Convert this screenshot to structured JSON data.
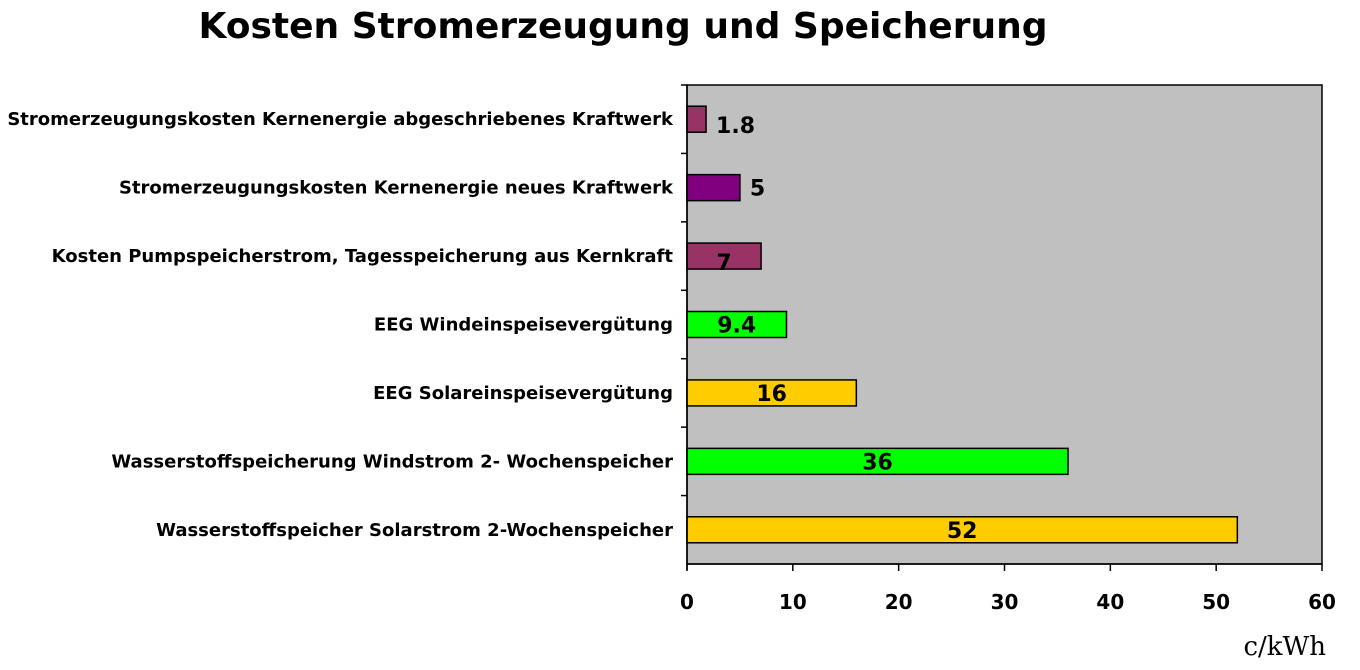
{
  "chart_data": {
    "type": "bar",
    "orientation": "horizontal",
    "title": "Kosten Stromerzeugung und Speicherung",
    "xlabel": "",
    "ylabel": "",
    "unit_label": "c/kWh",
    "xlim": [
      0,
      60
    ],
    "x_ticks": [
      0,
      10,
      20,
      30,
      40,
      50,
      60
    ],
    "grid": false,
    "legend": false,
    "plot_background": "#C0C0C0",
    "bars": [
      {
        "category": "Stromerzeugungskosten Kernenergie abgeschriebenes Kraftwerk",
        "value": 1.8,
        "label": "1.8",
        "color": "#993366"
      },
      {
        "category": "Stromerzeugungskosten Kernenergie neues Kraftwerk",
        "value": 5,
        "label": "5",
        "color": "#800080"
      },
      {
        "category": "Kosten Pumpspeicherstrom, Tagesspeicherung aus Kernkraft",
        "value": 7,
        "label": "7",
        "color": "#993366"
      },
      {
        "category": "EEG Windeinspeisevergütung",
        "value": 9.4,
        "label": "9.4",
        "color": "#00FF00"
      },
      {
        "category": "EEG Solareinspeisevergütung",
        "value": 16,
        "label": "16",
        "color": "#FFCC00"
      },
      {
        "category": "Wasserstoffspeicherung Windstrom 2- Wochenspeicher",
        "value": 36,
        "label": "36",
        "color": "#00FF00"
      },
      {
        "category": "Wasserstoffspeicher Solarstrom 2-Wochenspeicher",
        "value": 52,
        "label": "52",
        "color": "#FFCC00"
      }
    ]
  }
}
